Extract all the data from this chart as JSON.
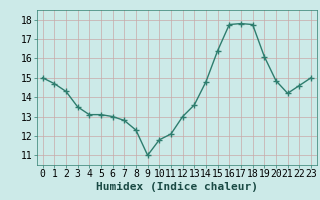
{
  "x": [
    0,
    1,
    2,
    3,
    4,
    5,
    6,
    7,
    8,
    9,
    10,
    11,
    12,
    13,
    14,
    15,
    16,
    17,
    18,
    19,
    20,
    21,
    22,
    23
  ],
  "y": [
    15.0,
    14.7,
    14.3,
    13.5,
    13.1,
    13.1,
    13.0,
    12.8,
    12.3,
    11.0,
    11.8,
    12.1,
    13.0,
    13.6,
    14.8,
    16.4,
    17.75,
    17.8,
    17.75,
    16.1,
    14.85,
    14.2,
    14.6,
    15.0
  ],
  "xlabel": "Humidex (Indice chaleur)",
  "xlim": [
    -0.5,
    23.5
  ],
  "ylim": [
    10.5,
    18.5
  ],
  "yticks": [
    11,
    12,
    13,
    14,
    15,
    16,
    17,
    18
  ],
  "xticks": [
    0,
    1,
    2,
    3,
    4,
    5,
    6,
    7,
    8,
    9,
    10,
    11,
    12,
    13,
    14,
    15,
    16,
    17,
    18,
    19,
    20,
    21,
    22,
    23
  ],
  "line_color": "#2e7d6e",
  "marker": "+",
  "marker_size": 4,
  "marker_lw": 1.0,
  "line_width": 1.0,
  "bg_color": "#cceae8",
  "grid_color": "#c8a8a8",
  "xlabel_fontsize": 8,
  "tick_fontsize": 7
}
